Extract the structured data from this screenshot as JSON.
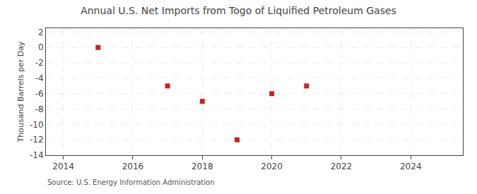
{
  "chart_data": {
    "type": "scatter",
    "title": "Annual U.S. Net Imports from Togo of Liquified Petroleum Gases",
    "ylabel": "Thousand Barrels per Day",
    "annotations": [
      "Source: U.S. Energy Information Administration"
    ],
    "x": [
      2015,
      2017,
      2018,
      2019,
      2020,
      2021
    ],
    "values": [
      0,
      -5,
      -7,
      -12,
      -6,
      -5
    ],
    "color": "#cc2222",
    "marker": "square",
    "xlim": [
      2013.5,
      2025.5
    ],
    "ylim": [
      -14,
      2.5
    ],
    "xticks": [
      2014,
      2016,
      2018,
      2020,
      2022,
      2024
    ],
    "yticks": [
      2,
      0,
      -2,
      -4,
      -6,
      -8,
      -10,
      -12,
      -14
    ],
    "grid": true
  }
}
